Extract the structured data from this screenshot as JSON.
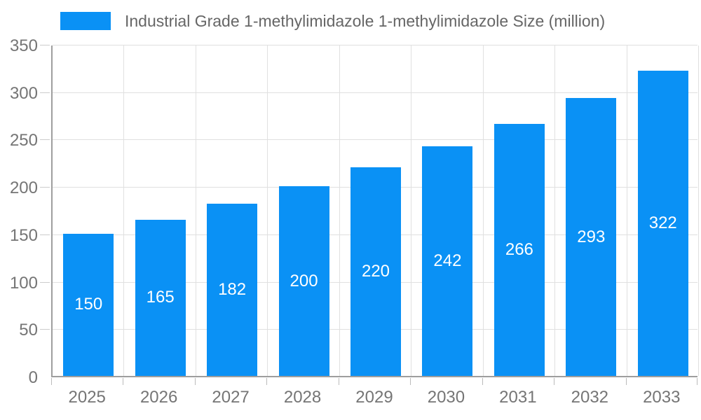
{
  "chart_data": {
    "type": "bar",
    "title": "",
    "legend": "Industrial Grade 1-methylimidazole 1-methylimidazole Size (million)",
    "legend_position": "top",
    "categories": [
      "2025",
      "2026",
      "2027",
      "2028",
      "2029",
      "2030",
      "2031",
      "2032",
      "2033"
    ],
    "values": [
      150,
      165,
      182,
      200,
      220,
      242,
      266,
      293,
      322
    ],
    "xlabel": "",
    "ylabel": "",
    "ylim": [
      0,
      350
    ],
    "ytick_step": 50,
    "grid": true,
    "colors": {
      "bar": "#0a91f5",
      "bar_label": "#ffffff",
      "grid": "#e0e0e0",
      "axis": "#9e9e9e",
      "tick_text": "#757575",
      "legend_text": "#666666",
      "background": "#ffffff"
    }
  }
}
